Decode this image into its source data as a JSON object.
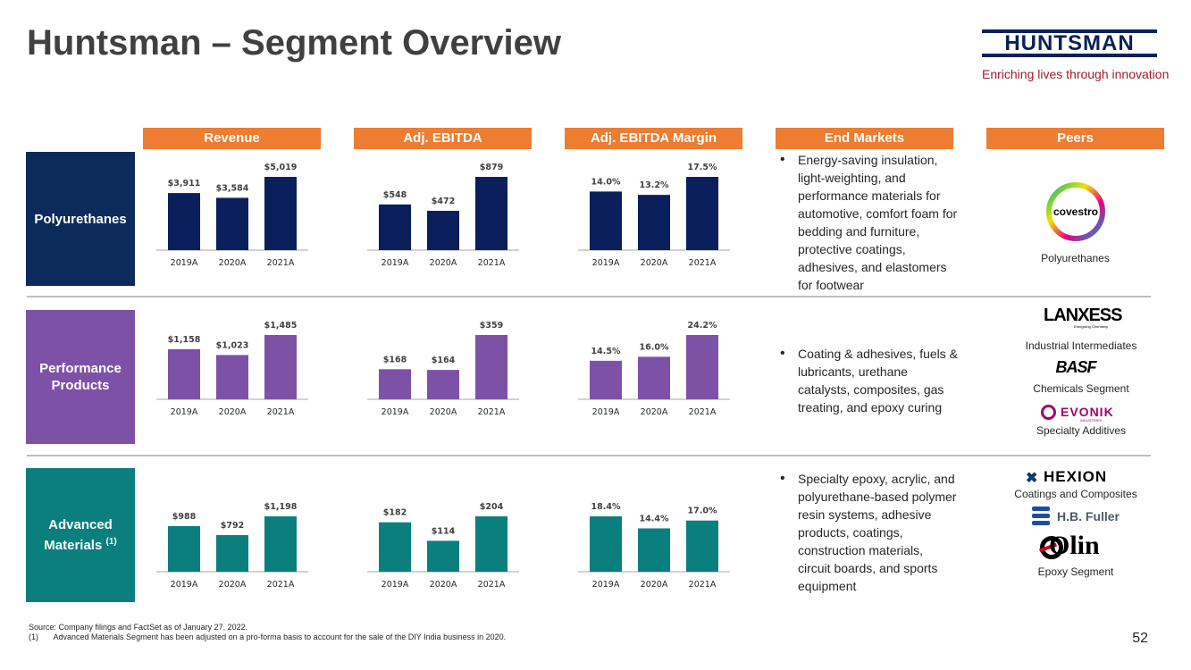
{
  "title": "Huntsman – Segment Overview",
  "logo": {
    "word": "HUNTSMAN",
    "tagline": "Enriching lives through innovation"
  },
  "headers": {
    "revenue": "Revenue",
    "ebitda": "Adj. EBITDA",
    "margin": "Adj. EBITDA Margin",
    "end_markets": "End Markets",
    "peers": "Peers"
  },
  "segments": [
    {
      "label": "Polyurethanes",
      "color": "#0d2b5a",
      "bar_color": "#0a1f5c"
    },
    {
      "label": "Performance Products",
      "color": "#7d52a6",
      "bar_color": "#7d52a6"
    },
    {
      "label": "Advanced Materials",
      "label_sup": "(1)",
      "color": "#0a7f7e",
      "bar_color": "#0a7f7e"
    }
  ],
  "chart_data": [
    {
      "type": "bar",
      "segment": "Polyurethanes",
      "metric": "Revenue",
      "categories": [
        "2019A",
        "2020A",
        "2021A"
      ],
      "values": [
        3911,
        3584,
        5019
      ],
      "labels": [
        "$3,911",
        "$3,584",
        "$5,019"
      ]
    },
    {
      "type": "bar",
      "segment": "Polyurethanes",
      "metric": "Adj. EBITDA",
      "categories": [
        "2019A",
        "2020A",
        "2021A"
      ],
      "values": [
        548,
        472,
        879
      ],
      "labels": [
        "$548",
        "$472",
        "$879"
      ]
    },
    {
      "type": "bar",
      "segment": "Polyurethanes",
      "metric": "Adj. EBITDA Margin",
      "categories": [
        "2019A",
        "2020A",
        "2021A"
      ],
      "values": [
        14.0,
        13.2,
        17.5
      ],
      "labels": [
        "14.0%",
        "13.2%",
        "17.5%"
      ]
    },
    {
      "type": "bar",
      "segment": "Performance Products",
      "metric": "Revenue",
      "categories": [
        "2019A",
        "2020A",
        "2021A"
      ],
      "values": [
        1158,
        1023,
        1485
      ],
      "labels": [
        "$1,158",
        "$1,023",
        "$1,485"
      ]
    },
    {
      "type": "bar",
      "segment": "Performance Products",
      "metric": "Adj. EBITDA",
      "categories": [
        "2019A",
        "2020A",
        "2021A"
      ],
      "values": [
        168,
        164,
        359
      ],
      "labels": [
        "$168",
        "$164",
        "$359"
      ]
    },
    {
      "type": "bar",
      "segment": "Performance Products",
      "metric": "Adj. EBITDA Margin",
      "categories": [
        "2019A",
        "2020A",
        "2021A"
      ],
      "values": [
        14.5,
        16.0,
        24.2
      ],
      "labels": [
        "14.5%",
        "16.0%",
        "24.2%"
      ]
    },
    {
      "type": "bar",
      "segment": "Advanced Materials",
      "metric": "Revenue",
      "categories": [
        "2019A",
        "2020A",
        "2021A"
      ],
      "values": [
        988,
        792,
        1198
      ],
      "labels": [
        "$988",
        "$792",
        "$1,198"
      ]
    },
    {
      "type": "bar",
      "segment": "Advanced Materials",
      "metric": "Adj. EBITDA",
      "categories": [
        "2019A",
        "2020A",
        "2021A"
      ],
      "values": [
        182,
        114,
        204
      ],
      "labels": [
        "$182",
        "$114",
        "$204"
      ]
    },
    {
      "type": "bar",
      "segment": "Advanced Materials",
      "metric": "Adj. EBITDA Margin",
      "categories": [
        "2019A",
        "2020A",
        "2021A"
      ],
      "values": [
        18.4,
        14.4,
        17.0
      ],
      "labels": [
        "18.4%",
        "14.4%",
        "17.0%"
      ]
    }
  ],
  "end_markets": [
    "Energy-saving insulation, light-weighting, and performance materials for automotive, comfort foam for bedding and furniture, protective coatings, adhesives, and elastomers for footwear",
    "Coating & adhesives, fuels & lubricants, urethane catalysts, composites, gas treating, and epoxy curing",
    "Specialty epoxy, acrylic, and polyurethane-based polymer resin systems, adhesive products, coatings, construction materials, circuit boards, and sports equipment"
  ],
  "peers": {
    "covestro": {
      "logo_text": "covestro",
      "caption": "Polyurethanes"
    },
    "lanxess": {
      "logo_text": "LANXESS",
      "logo_sub": "Energizing Chemistry",
      "caption": "Industrial Intermediates"
    },
    "basf": {
      "logo_text": "BASF",
      "caption": "Chemicals Segment"
    },
    "evonik": {
      "logo_text": "EVONIK",
      "logo_sub": "INDUSTRIES",
      "caption": "Specialty Additives"
    },
    "hexion": {
      "logo_text": "HEXION",
      "caption": "Coatings and Composites"
    },
    "hbfuller": {
      "logo_text": "H.B. Fuller"
    },
    "olin": {
      "logo_text": "Olin",
      "caption": "Epoxy Segment"
    }
  },
  "footnotes": {
    "source": "Source: Company filings and FactSet as of January 27, 2022.",
    "note1_marker": "(1)",
    "note1": "Advanced Materials Segment has been adjusted on a pro-forma basis to account for the sale of the DIY India business in 2020."
  },
  "page_number": "52",
  "colors": {
    "header": "#ed7d31",
    "text": "#404040",
    "divider": "#bfbfbf"
  }
}
